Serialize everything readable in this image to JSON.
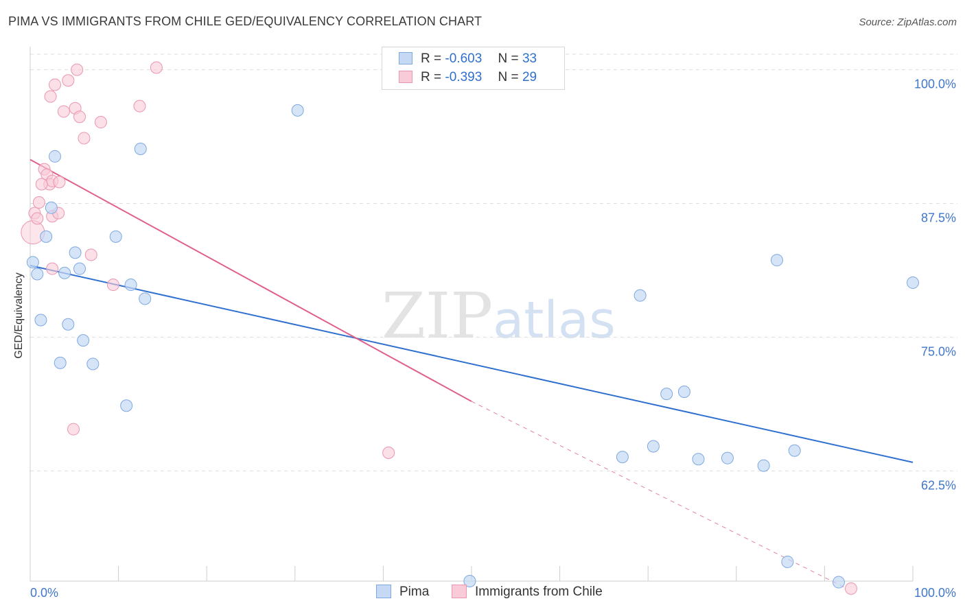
{
  "title": "PIMA VS IMMIGRANTS FROM CHILE GED/EQUIVALENCY CORRELATION CHART",
  "source": "Source: ZipAtlas.com",
  "watermark": {
    "zip": "ZIP",
    "atlas": "atlas"
  },
  "legend": {
    "rows": [
      {
        "r_label": "R =",
        "r_value": "-0.603",
        "n_label": "N =",
        "n_value": "33"
      },
      {
        "r_label": "R =",
        "r_value": "-0.393",
        "n_label": "N =",
        "n_value": "29"
      }
    ]
  },
  "bottom_legend": {
    "pima": "Pima",
    "chile": "Immigrants from Chile"
  },
  "colors": {
    "pima_fill": "#c5d9f4",
    "pima_stroke": "#7ea8e0",
    "pima_line": "#2f6fcf",
    "chile_fill": "#f9cbd8",
    "chile_stroke": "#ec95b0",
    "chile_line": "#e0608d",
    "tick_text": "#3f76cc",
    "grid": "#dddddd"
  },
  "chart_data": {
    "type": "scatter",
    "xlabel": "",
    "ylabel": "GED/Equivalency",
    "xlim": [
      0,
      100
    ],
    "ylim": [
      52.2,
      101.9
    ],
    "x_tick_labels": [
      "0.0%",
      "100.0%"
    ],
    "y_ticks": [
      {
        "value": 100.0,
        "label": "100.0%"
      },
      {
        "value": 87.5,
        "label": "87.5%"
      },
      {
        "value": 75.0,
        "label": "75.0%"
      },
      {
        "value": 62.5,
        "label": "62.5%"
      }
    ],
    "grid": "horizontal dashed",
    "series": [
      {
        "name": "Pima",
        "points": [
          [
            0.3,
            82.0
          ],
          [
            0.8,
            80.9
          ],
          [
            1.2,
            76.6
          ],
          [
            2.8,
            91.9
          ],
          [
            2.4,
            87.1
          ],
          [
            1.8,
            84.4
          ],
          [
            5.1,
            82.9
          ],
          [
            5.6,
            81.4
          ],
          [
            3.9,
            81.0
          ],
          [
            4.3,
            76.2
          ],
          [
            6.0,
            74.7
          ],
          [
            3.4,
            72.6
          ],
          [
            7.1,
            72.5
          ],
          [
            9.7,
            84.4
          ],
          [
            12.5,
            92.6
          ],
          [
            11.4,
            79.9
          ],
          [
            13.0,
            78.6
          ],
          [
            10.9,
            68.6
          ],
          [
            30.3,
            96.2
          ],
          [
            49.8,
            52.2
          ],
          [
            69.1,
            78.9
          ],
          [
            72.1,
            69.7
          ],
          [
            74.1,
            69.9
          ],
          [
            67.1,
            63.8
          ],
          [
            70.6,
            64.8
          ],
          [
            75.7,
            63.6
          ],
          [
            79.0,
            63.7
          ],
          [
            83.1,
            63.0
          ],
          [
            84.6,
            82.2
          ],
          [
            86.6,
            64.4
          ],
          [
            85.8,
            54.0
          ],
          [
            91.6,
            52.1
          ],
          [
            100.0,
            80.1
          ]
        ],
        "trend": {
          "x": [
            0,
            100
          ],
          "y": [
            81.7,
            63.3
          ],
          "style": "solid"
        }
      },
      {
        "name": "Immigrants from Chile",
        "points": [
          [
            0.3,
            84.8
          ],
          [
            0.5,
            86.6
          ],
          [
            0.8,
            86.1
          ],
          [
            1.0,
            87.6
          ],
          [
            1.6,
            90.7
          ],
          [
            1.9,
            90.2
          ],
          [
            2.2,
            89.3
          ],
          [
            2.5,
            89.6
          ],
          [
            1.3,
            89.3
          ],
          [
            2.5,
            86.3
          ],
          [
            3.2,
            86.6
          ],
          [
            3.3,
            89.5
          ],
          [
            2.3,
            97.5
          ],
          [
            2.8,
            98.6
          ],
          [
            3.8,
            96.1
          ],
          [
            4.3,
            99.0
          ],
          [
            5.1,
            96.4
          ],
          [
            5.6,
            95.6
          ],
          [
            6.1,
            93.6
          ],
          [
            5.3,
            100.0
          ],
          [
            8.0,
            95.1
          ],
          [
            12.4,
            96.6
          ],
          [
            14.3,
            100.2
          ],
          [
            2.5,
            81.4
          ],
          [
            6.9,
            82.7
          ],
          [
            9.4,
            79.9
          ],
          [
            4.9,
            66.4
          ],
          [
            40.6,
            64.2
          ],
          [
            93.0,
            51.5
          ]
        ],
        "trend": {
          "x": [
            0,
            50
          ],
          "y": [
            91.6,
            69.0
          ],
          "style": "solid",
          "extension": {
            "x": [
              50,
              92.3
            ],
            "y": [
              69.0,
              51.6
            ],
            "style": "dashed"
          }
        }
      }
    ]
  }
}
